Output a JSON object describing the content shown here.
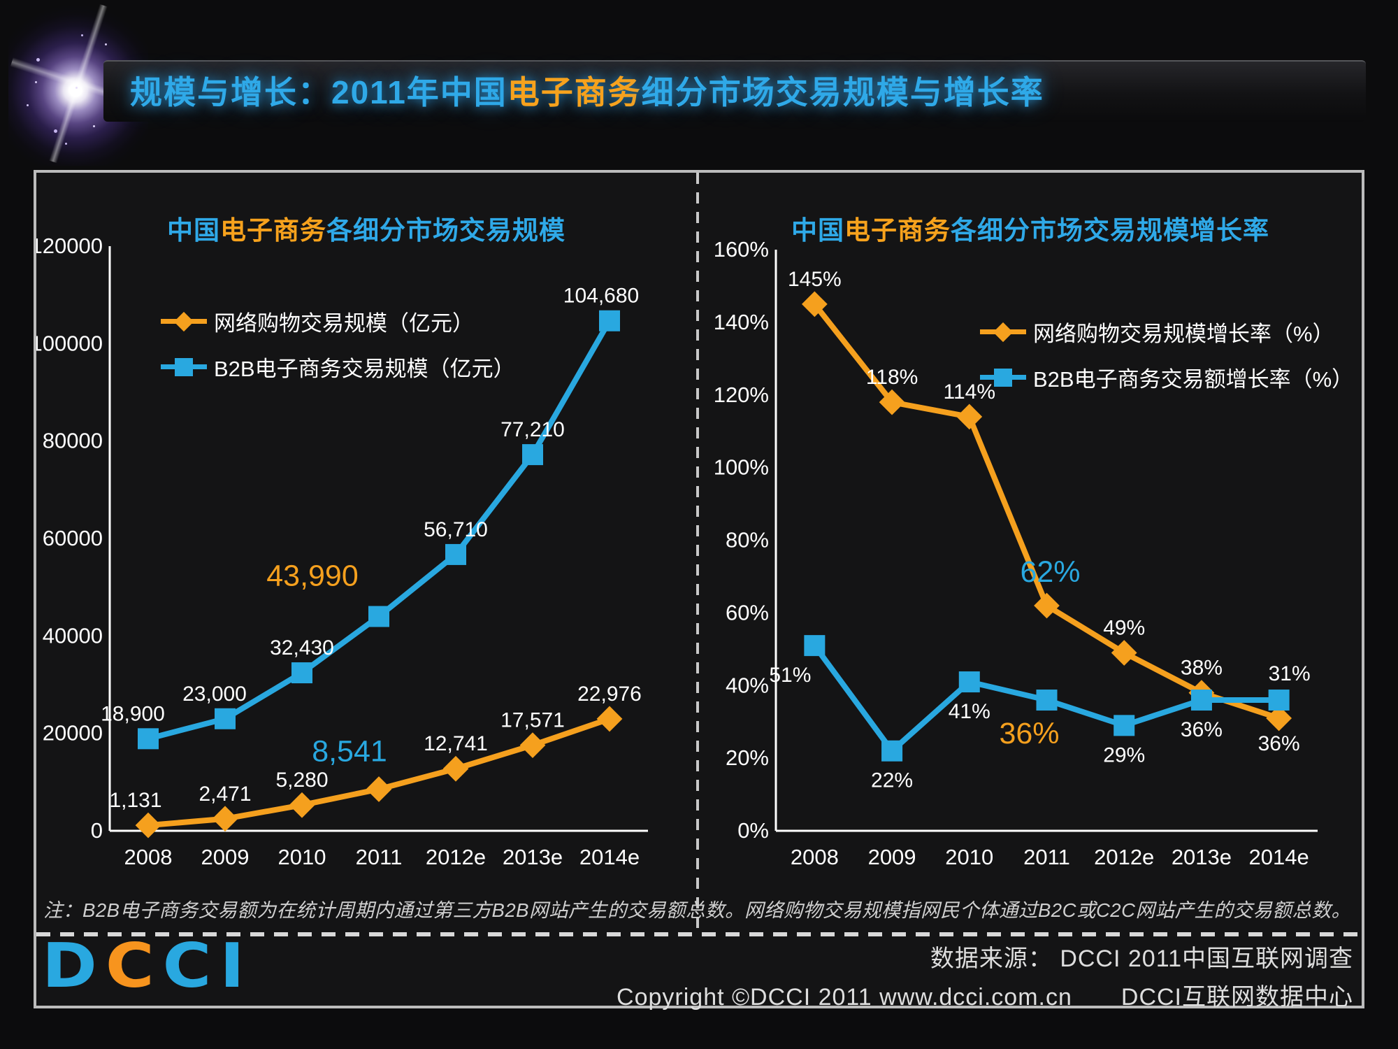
{
  "colors": {
    "blue": "#2FA9E8",
    "orange": "#F7A21D",
    "line_blue": "#29A8E0",
    "line_orange": "#F5A01E",
    "white": "#FFFFFF"
  },
  "header": {
    "title_parts": [
      {
        "text": "规模与增长：2011年中国",
        "color": "blue"
      },
      {
        "text": "电子商务",
        "color": "orange"
      },
      {
        "text": "细分市场交易规模与增长率",
        "color": "blue"
      }
    ]
  },
  "chart_data": [
    {
      "type": "line",
      "title_parts": [
        {
          "text": "中国",
          "color": "blue"
        },
        {
          "text": "电子商务",
          "color": "orange"
        },
        {
          "text": "各细分市场交易规模",
          "color": "blue"
        }
      ],
      "categories": [
        "2008",
        "2009",
        "2010",
        "2011",
        "2012e",
        "2013e",
        "2014e"
      ],
      "ylim": [
        0,
        120000
      ],
      "ystep": 20000,
      "tick_suffix": "",
      "grid": false,
      "legend_position": "inside-top-left",
      "series": [
        {
          "name": "网络购物交易规模（亿元）",
          "color": "#F5A01E",
          "marker": "diamond",
          "label_pos": "above",
          "values": [
            1131,
            2471,
            5280,
            8541,
            12741,
            17571,
            22976
          ],
          "labels": [
            "1,131",
            "2,471",
            "5,280",
            "8,541",
            "12,741",
            "17,571",
            "22,976"
          ],
          "highlight": {
            "index": 3,
            "color": "#29A8E0"
          }
        },
        {
          "name": "B2B电子商务交易规模（亿元）",
          "color": "#29A8E0",
          "marker": "square",
          "label_pos": "above",
          "values": [
            18900,
            23000,
            32430,
            43990,
            56710,
            77210,
            104680
          ],
          "labels": [
            "18,900",
            "23,000",
            "32,430",
            "43,990",
            "56,710",
            "77,210",
            "104,680"
          ],
          "highlight": {
            "index": 3,
            "color": "#F5A01E"
          }
        }
      ]
    },
    {
      "type": "line",
      "title_parts": [
        {
          "text": "中国",
          "color": "blue"
        },
        {
          "text": "电子商务",
          "color": "orange"
        },
        {
          "text": "各细分市场交易规模增长率",
          "color": "blue"
        }
      ],
      "categories": [
        "2008",
        "2009",
        "2010",
        "2011",
        "2012e",
        "2013e",
        "2014e"
      ],
      "ylim": [
        0,
        160
      ],
      "ystep": 20,
      "tick_suffix": "%",
      "grid": false,
      "legend_position": "inside-top-right",
      "series": [
        {
          "name": "网络购物交易规模增长率（%）",
          "color": "#F5A01E",
          "marker": "diamond",
          "label_pos": "above",
          "values": [
            145,
            118,
            114,
            62,
            49,
            38,
            31
          ],
          "labels": [
            "145%",
            "118%",
            "114%",
            "62%",
            "49%",
            "38%",
            "31%"
          ],
          "highlight": {
            "index": 3,
            "color": "#29A8E0"
          }
        },
        {
          "name": "B2B电子商务交易额增长率（%）",
          "color": "#29A8E0",
          "marker": "square",
          "label_pos": "below",
          "values": [
            51,
            22,
            41,
            36,
            29,
            36,
            36
          ],
          "labels": [
            "51%",
            "22%",
            "41%",
            "36%",
            "29%",
            "36%",
            "36%"
          ],
          "highlight": {
            "index": 3,
            "color": "#F5A01E"
          }
        }
      ]
    }
  ],
  "note": "注：B2B电子商务交易额为在统计周期内通过第三方B2B网站产生的交易额总数。网络购物交易规模指网民个体通过B2C或C2C网站产生的交易额总数。",
  "footer": {
    "logo_letters": [
      {
        "ch": "D",
        "color": "#29A8E0"
      },
      {
        "ch": "C",
        "color": "#F7941E"
      },
      {
        "ch": "C",
        "color": "#29A8E0"
      },
      {
        "ch": "I",
        "color": "#29A8E0"
      }
    ],
    "source_line": "数据来源： DCCI 2011中国互联网调查",
    "copyright": "Copyright ©DCCI 2011 www.dcci.com.cn",
    "org": "DCCI互联网数据中心"
  }
}
